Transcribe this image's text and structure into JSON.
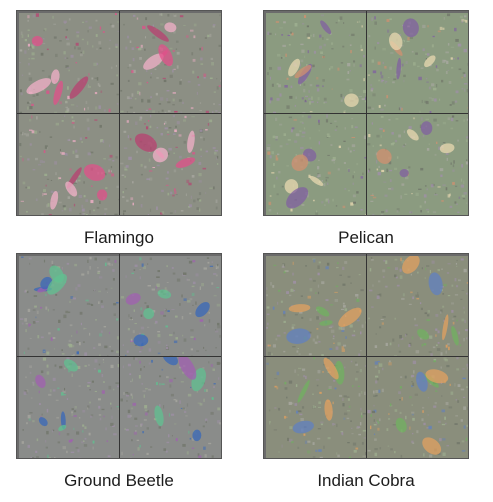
{
  "panels": [
    {
      "id": "flamingo",
      "caption": "Flamingo",
      "base": "#8c8f84",
      "accent": [
        "#e0508a",
        "#f2b0c8",
        "#b84070"
      ]
    },
    {
      "id": "pelican",
      "caption": "Pelican",
      "base": "#8b9b80",
      "accent": [
        "#e8d8b0",
        "#8060a0",
        "#d09070"
      ]
    },
    {
      "id": "ground-beetle",
      "caption": "Ground Beetle",
      "base": "#8a8c8a",
      "accent": [
        "#3868b8",
        "#60c090",
        "#a060b0"
      ]
    },
    {
      "id": "indian-cobra",
      "caption": "Indian Cobra",
      "base": "#8a8e7c",
      "accent": [
        "#e0a060",
        "#70b060",
        "#6080c0"
      ]
    }
  ]
}
